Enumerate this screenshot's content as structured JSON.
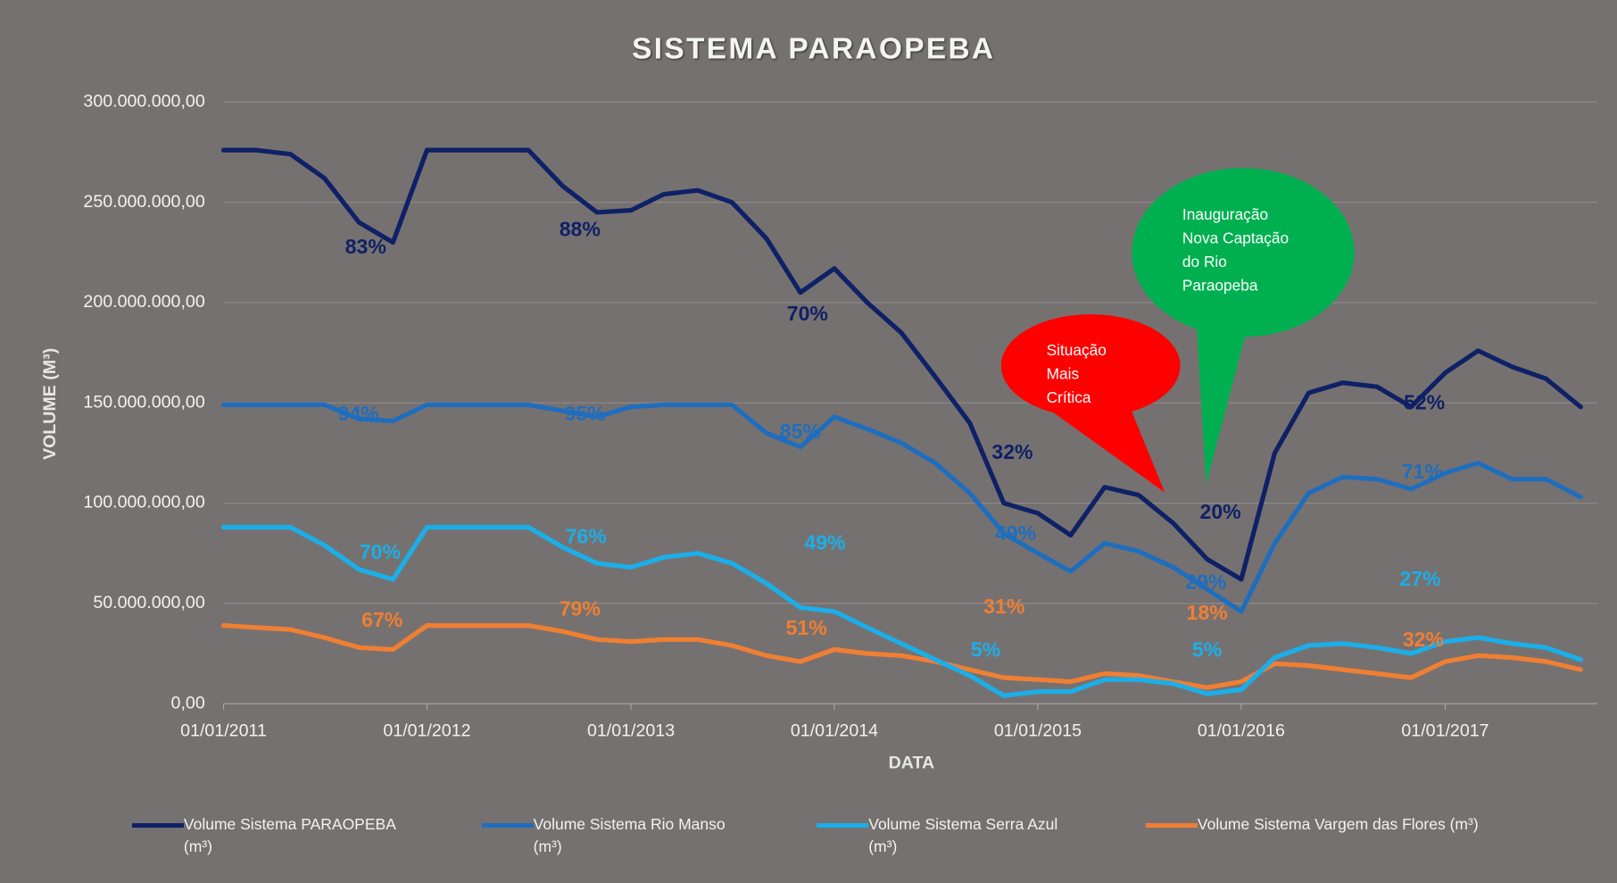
{
  "chart_data": {
    "type": "line",
    "title": "SISTEMA PARAOPEBA",
    "x_label": "DATA",
    "y_label": "VOLUME (M³)",
    "x": [
      "2011-01-01",
      "2011-03-01",
      "2011-05-01",
      "2011-07-01",
      "2011-09-01",
      "2011-11-01",
      "2012-01-01",
      "2012-03-01",
      "2012-05-01",
      "2012-07-01",
      "2012-09-01",
      "2012-11-01",
      "2013-01-01",
      "2013-03-01",
      "2013-05-01",
      "2013-07-01",
      "2013-09-01",
      "2013-11-01",
      "2014-01-01",
      "2014-03-01",
      "2014-05-01",
      "2014-07-01",
      "2014-09-01",
      "2014-11-01",
      "2015-01-01",
      "2015-03-01",
      "2015-05-01",
      "2015-07-01",
      "2015-09-01",
      "2015-11-01",
      "2016-01-01",
      "2016-03-01",
      "2016-05-01",
      "2016-07-01",
      "2016-09-01",
      "2016-11-01",
      "2017-01-01",
      "2017-03-01",
      "2017-05-01",
      "2017-07-01",
      "2017-09-01"
    ],
    "series": [
      {
        "name": "Volume Sistema PARAOPEBA (m³)",
        "color": "#0f2166",
        "values": [
          276000000,
          276000000,
          274000000,
          262000000,
          240000000,
          230000000,
          276000000,
          276000000,
          276000000,
          276000000,
          258000000,
          245000000,
          246000000,
          254000000,
          256000000,
          250000000,
          232000000,
          205000000,
          217000000,
          200000000,
          185000000,
          163000000,
          140000000,
          100000000,
          95000000,
          84000000,
          108000000,
          104000000,
          90000000,
          72000000,
          62000000,
          125000000,
          155000000,
          160000000,
          158000000,
          148000000,
          165000000,
          176000000,
          168000000,
          162000000,
          148000000
        ]
      },
      {
        "name": "Volume Sistema Rio Manso (m³)",
        "color": "#1f6ebe",
        "values": [
          149000000,
          149000000,
          149000000,
          149000000,
          142000000,
          141000000,
          149000000,
          149000000,
          149000000,
          149000000,
          146000000,
          143000000,
          148000000,
          149000000,
          149000000,
          149000000,
          135000000,
          128000000,
          143000000,
          137000000,
          130000000,
          120000000,
          105000000,
          85000000,
          75000000,
          66000000,
          80000000,
          76000000,
          68000000,
          57000000,
          46000000,
          80000000,
          105000000,
          113000000,
          112000000,
          107000000,
          115000000,
          120000000,
          112000000,
          112000000,
          103000000
        ]
      },
      {
        "name": "Volume Sistema Serra Azul (m³)",
        "color": "#1aafea",
        "values": [
          88000000,
          88000000,
          88000000,
          79000000,
          67000000,
          62000000,
          88000000,
          88000000,
          88000000,
          88000000,
          78000000,
          70000000,
          68000000,
          73000000,
          75000000,
          70000000,
          60000000,
          48000000,
          46000000,
          38000000,
          30000000,
          22000000,
          14000000,
          4000000,
          6000000,
          6000000,
          12000000,
          12000000,
          10000000,
          5000000,
          7000000,
          23000000,
          29000000,
          30000000,
          28000000,
          25000000,
          31000000,
          33000000,
          30000000,
          28000000,
          22000000
        ]
      },
      {
        "name": "Volume Sistema Vargem das Flores (m³)",
        "color": "#f07f32",
        "values": [
          39000000,
          38000000,
          37000000,
          33000000,
          28000000,
          27000000,
          39000000,
          39000000,
          39000000,
          39000000,
          36000000,
          32000000,
          31000000,
          32000000,
          32000000,
          29000000,
          24000000,
          21000000,
          27000000,
          25000000,
          24000000,
          21000000,
          17000000,
          13000000,
          12000000,
          11000000,
          15000000,
          14000000,
          11000000,
          8000000,
          11000000,
          20000000,
          19000000,
          17000000,
          15000000,
          13000000,
          21000000,
          24000000,
          23000000,
          21000000,
          17000000
        ]
      }
    ],
    "xlim": [
      "2011-01-01",
      "2017-10-01"
    ],
    "xticks": [
      {
        "value": "2011-01-01",
        "label": "01/01/2011"
      },
      {
        "value": "2012-01-01",
        "label": "01/01/2012"
      },
      {
        "value": "2013-01-01",
        "label": "01/01/2013"
      },
      {
        "value": "2014-01-01",
        "label": "01/01/2014"
      },
      {
        "value": "2015-01-01",
        "label": "01/01/2015"
      },
      {
        "value": "2016-01-01",
        "label": "01/01/2016"
      },
      {
        "value": "2017-01-01",
        "label": "01/01/2017"
      }
    ],
    "ylim": [
      0,
      300000000
    ],
    "yticks": [
      {
        "value": 0,
        "label": "0,00"
      },
      {
        "value": 50000000,
        "label": "50.000.000,00"
      },
      {
        "value": 100000000,
        "label": "100.000.000,00"
      },
      {
        "value": 150000000,
        "label": "150.000.000,00"
      },
      {
        "value": 200000000,
        "label": "200.000.000,00"
      },
      {
        "value": 250000000,
        "label": "250.000.000,00"
      },
      {
        "value": 300000000,
        "label": "300.000.000,00"
      }
    ],
    "grid": true,
    "legend": "bottom",
    "annotations": [
      {
        "text": "83%",
        "color": "#0f2166"
      },
      {
        "text": "88%",
        "color": "#0f2166"
      },
      {
        "text": "70%",
        "color": "#0f2166"
      },
      {
        "text": "32%",
        "color": "#0f2166"
      },
      {
        "text": "20%",
        "color": "#0f2166"
      },
      {
        "text": "52%",
        "color": "#0f2166"
      },
      {
        "text": "94%",
        "color": "#1f6ebe"
      },
      {
        "text": "95%",
        "color": "#1f6ebe"
      },
      {
        "text": "85%",
        "color": "#1f6ebe"
      },
      {
        "text": "49%",
        "color": "#1f6ebe"
      },
      {
        "text": "29%",
        "color": "#1f6ebe"
      },
      {
        "text": "71%",
        "color": "#1f6ebe"
      },
      {
        "text": "70%",
        "color": "#1aafea"
      },
      {
        "text": "76%",
        "color": "#1aafea"
      },
      {
        "text": "49%",
        "color": "#1aafea"
      },
      {
        "text": "5%",
        "color": "#1aafea"
      },
      {
        "text": "5%",
        "color": "#1aafea"
      },
      {
        "text": "27%",
        "color": "#1aafea"
      },
      {
        "text": "67%",
        "color": "#f07f32"
      },
      {
        "text": "79%",
        "color": "#f07f32"
      },
      {
        "text": "51%",
        "color": "#f07f32"
      },
      {
        "text": "31%",
        "color": "#f07f32"
      },
      {
        "text": "18%",
        "color": "#f07f32"
      },
      {
        "text": "32%",
        "color": "#f07f32"
      }
    ],
    "callouts": [
      {
        "lines": [
          "Situação",
          "Mais",
          "Crítica"
        ],
        "color": "#ff0000"
      },
      {
        "lines": [
          "Inauguração",
          "Nova Captação",
          "do Rio",
          "Paraopeba"
        ],
        "color": "#00b050"
      }
    ]
  }
}
